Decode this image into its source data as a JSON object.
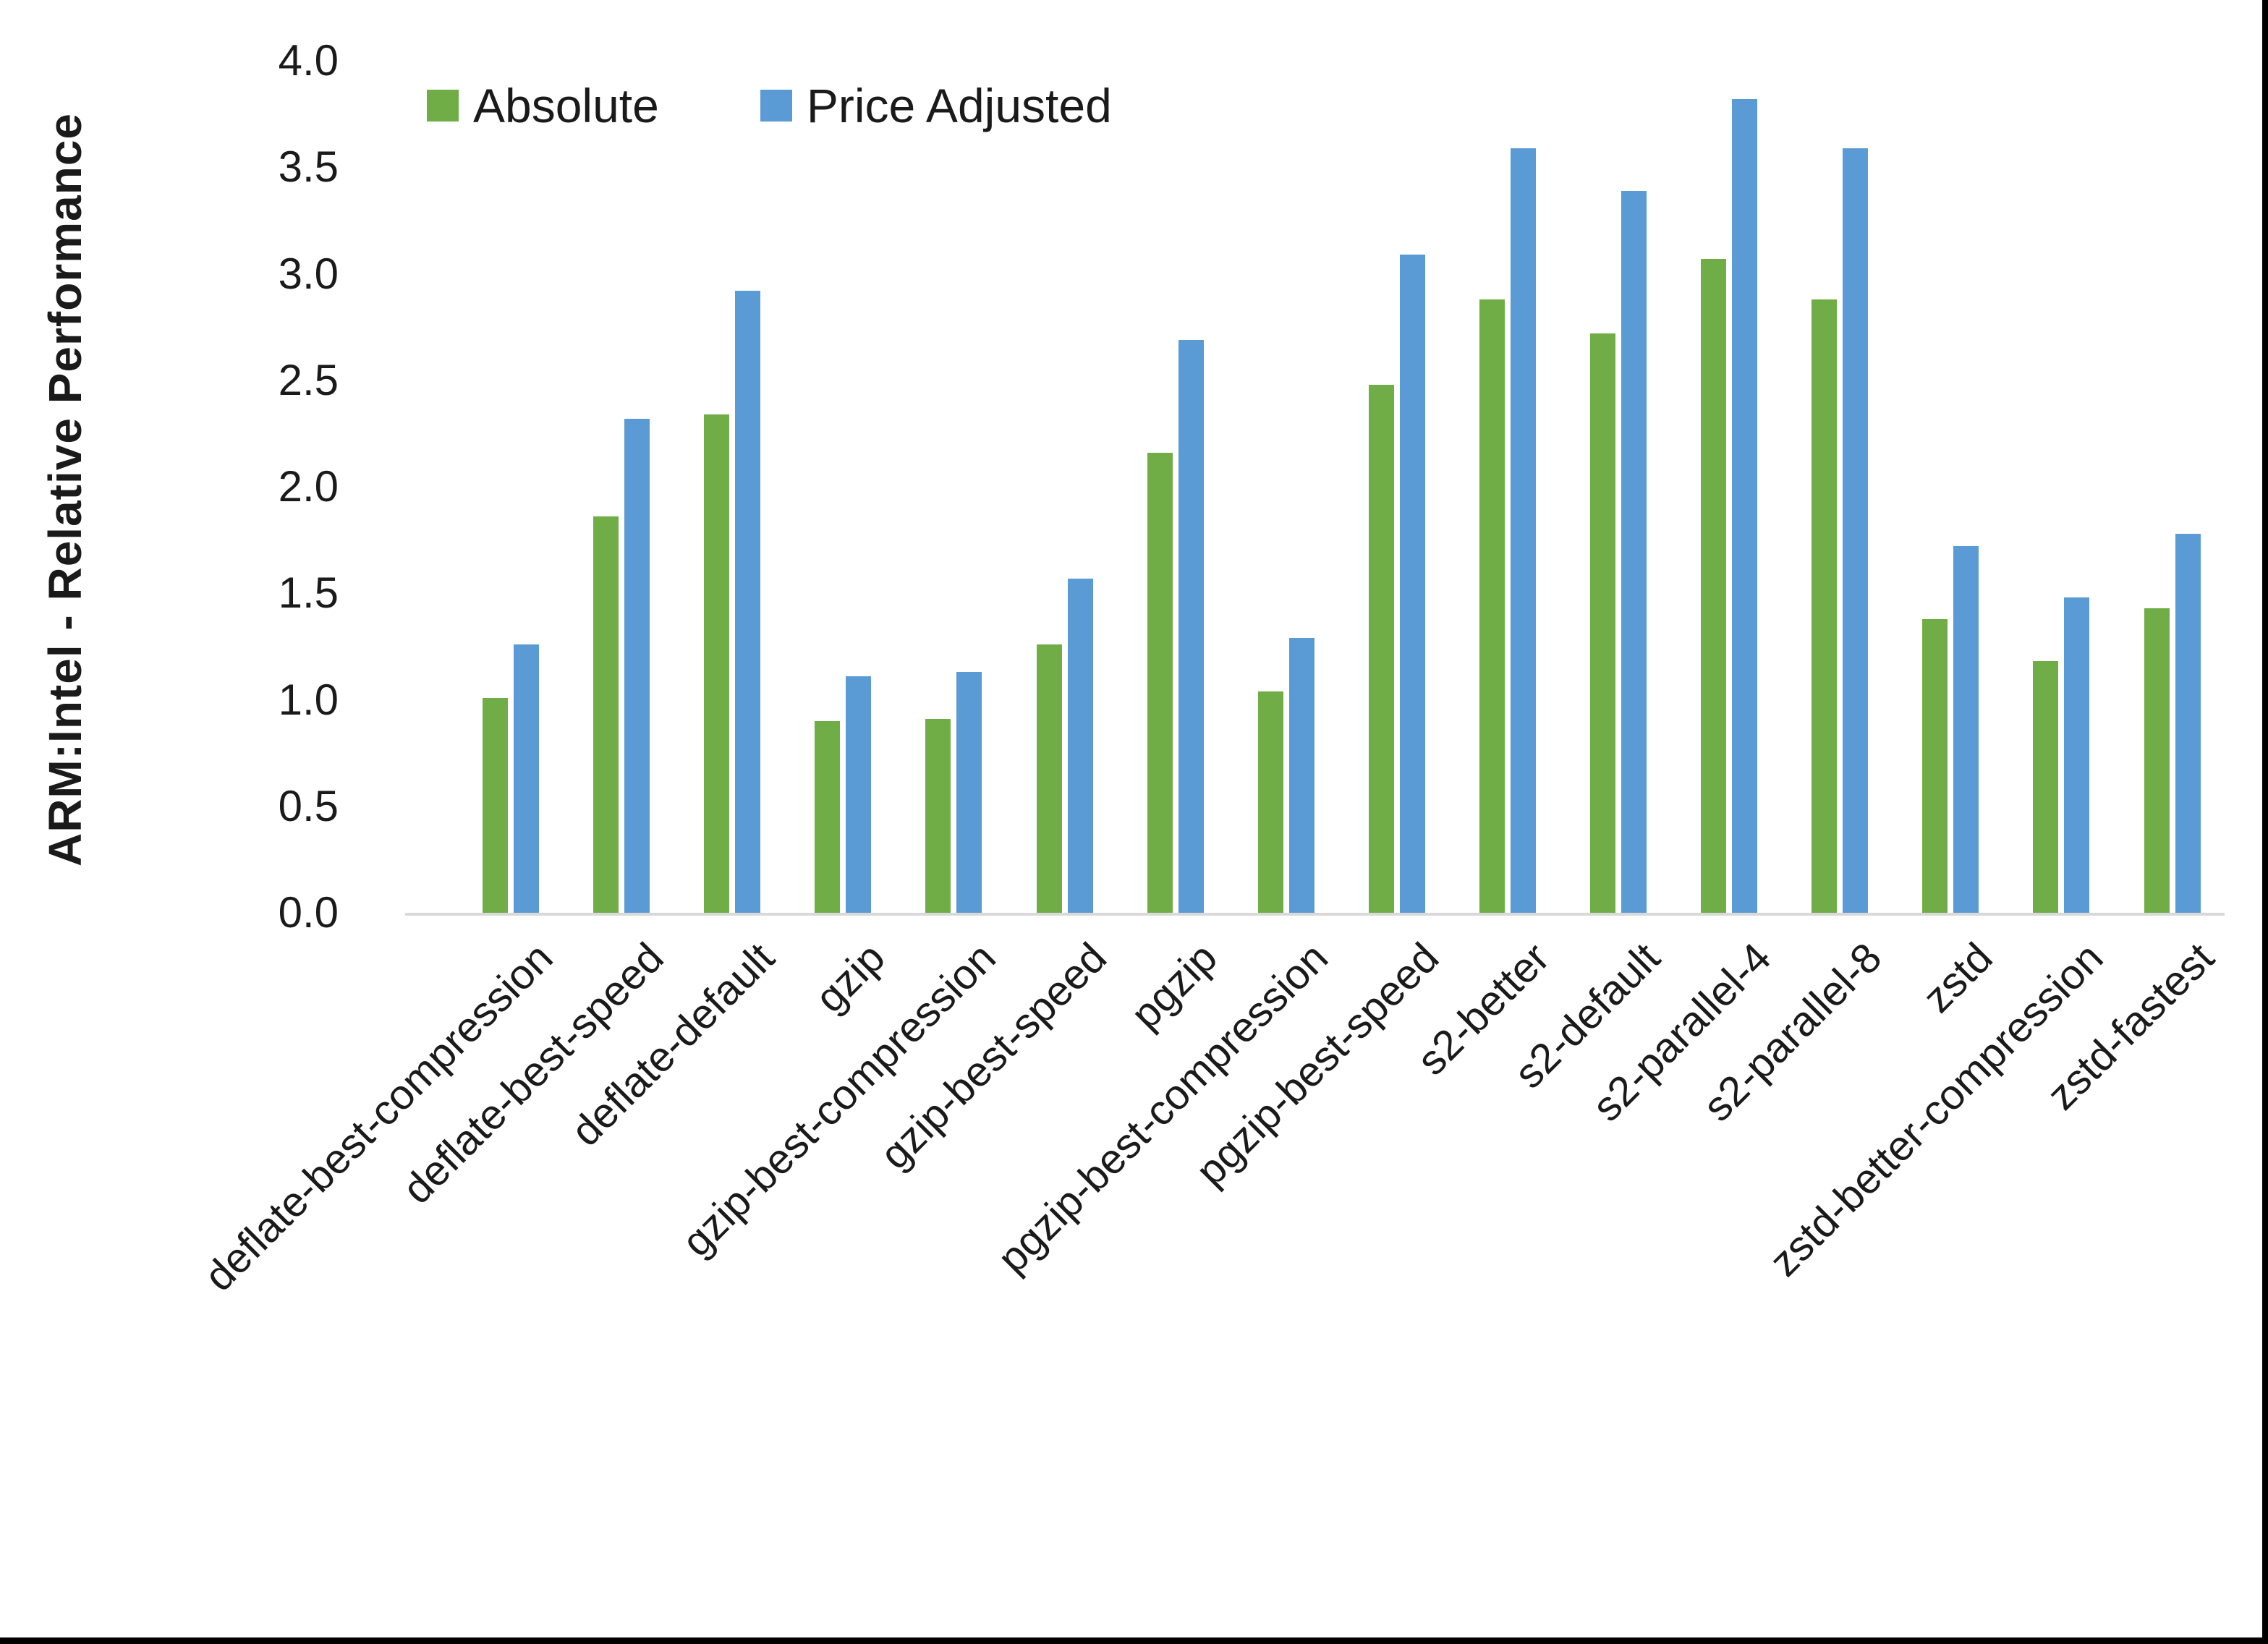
{
  "chart": {
    "y_axis_title": "ARM:Intel - Relative Performance",
    "y_ticks": [
      "0.0",
      "0.5",
      "1.0",
      "1.5",
      "2.0",
      "2.5",
      "3.0",
      "3.5",
      "4.0"
    ],
    "colors": {
      "absolute": "#70AD47",
      "price_adjusted": "#5B9BD5",
      "axis_line": "#D9D9D9",
      "text": "#1a1a1a",
      "frame": "#000000"
    }
  },
  "legend": {
    "absolute_label": "Absolute",
    "price_adjusted_label": "Price Adjusted"
  },
  "chart_data": {
    "type": "bar",
    "title": "",
    "xlabel": "",
    "ylabel": "ARM:Intel - Relative Performance",
    "ylim": [
      0.0,
      4.0
    ],
    "y_tick_step": 0.5,
    "grid": false,
    "legend_position": "top-center-inside",
    "categories": [
      "deflate-best-compression",
      "deflate-best-speed",
      "deflate-default",
      "gzip",
      "gzip-best-compression",
      "gzip-best-speed",
      "pgzip",
      "pgzip-best-compression",
      "pgzip-best-speed",
      "s2-better",
      "s2-default",
      "s2-parallel-4",
      "s2-parallel-8",
      "zstd",
      "zstd-better-compression",
      "zstd-fastest"
    ],
    "series": [
      {
        "name": "Absolute",
        "color": "#70AD47",
        "values": [
          1.01,
          1.86,
          2.34,
          0.9,
          0.91,
          1.26,
          2.16,
          1.04,
          2.48,
          2.88,
          2.72,
          3.07,
          2.88,
          1.38,
          1.18,
          1.43
        ]
      },
      {
        "name": "Price Adjusted",
        "color": "#5B9BD5",
        "values": [
          1.26,
          2.32,
          2.92,
          1.11,
          1.13,
          1.57,
          2.69,
          1.29,
          3.09,
          3.59,
          3.39,
          3.82,
          3.59,
          1.72,
          1.48,
          1.78
        ]
      }
    ]
  }
}
